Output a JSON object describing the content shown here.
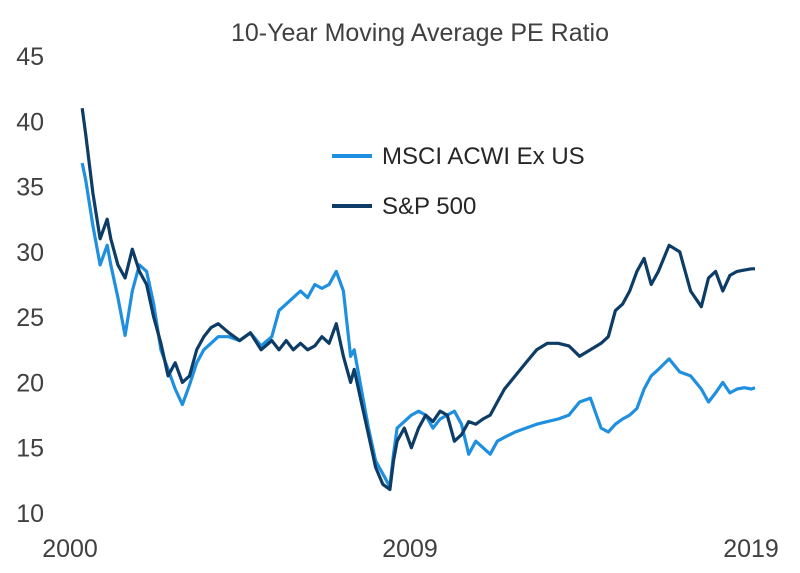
{
  "chart_data": {
    "type": "line",
    "title": "10-Year Moving Average PE Ratio",
    "xlabel": "",
    "ylabel": "",
    "x_ticks": [
      "2000",
      "2009",
      "2019"
    ],
    "y_ticks": [
      10,
      15,
      20,
      25,
      30,
      35,
      40,
      45
    ],
    "xlim": [
      2000,
      2019
    ],
    "ylim": [
      10,
      45
    ],
    "grid": false,
    "legend_position": "upper-center",
    "series": [
      {
        "name": "MSCI ACWI Ex US",
        "color": "#1f8fe0",
        "x": [
          2000.2,
          2000.3,
          2000.5,
          2000.7,
          2000.9,
          2001.0,
          2001.2,
          2001.4,
          2001.6,
          2001.8,
          2002.0,
          2002.2,
          2002.4,
          2002.6,
          2002.8,
          2003.0,
          2003.2,
          2003.4,
          2003.6,
          2003.8,
          2004.0,
          2004.3,
          2004.6,
          2004.9,
          2005.2,
          2005.5,
          2005.7,
          2005.9,
          2006.1,
          2006.3,
          2006.5,
          2006.7,
          2006.9,
          2007.1,
          2007.3,
          2007.5,
          2007.7,
          2007.8,
          2008.0,
          2008.2,
          2008.4,
          2008.6,
          2008.8,
          2008.9,
          2009.0,
          2009.2,
          2009.4,
          2009.6,
          2009.8,
          2010.0,
          2010.2,
          2010.4,
          2010.6,
          2010.8,
          2011.0,
          2011.2,
          2011.4,
          2011.6,
          2011.8,
          2012.0,
          2012.3,
          2012.6,
          2012.9,
          2013.2,
          2013.5,
          2013.8,
          2014.1,
          2014.4,
          2014.7,
          2014.9,
          2015.1,
          2015.3,
          2015.5,
          2015.7,
          2015.9,
          2016.1,
          2016.3,
          2016.6,
          2016.9,
          2017.2,
          2017.5,
          2017.7,
          2017.9,
          2018.1,
          2018.3,
          2018.5,
          2018.7,
          2018.9,
          2019.0
        ],
        "values": [
          36.8,
          35.5,
          32,
          29,
          30.5,
          29,
          26.5,
          23.6,
          27,
          29,
          28.5,
          26,
          22.5,
          21,
          19.5,
          18.3,
          19.8,
          21.5,
          22.5,
          23,
          23.5,
          23.5,
          23.2,
          23.8,
          22.8,
          23.5,
          25.5,
          26,
          26.5,
          27,
          26.5,
          27.5,
          27.2,
          27.5,
          28.5,
          27,
          22,
          22.5,
          19.5,
          16.5,
          14,
          13,
          12,
          14.5,
          16.5,
          17,
          17.5,
          17.8,
          17.5,
          16.5,
          17.2,
          17.5,
          17.8,
          16.8,
          14.5,
          15.5,
          15,
          14.5,
          15.5,
          15.8,
          16.2,
          16.5,
          16.8,
          17,
          17.2,
          17.5,
          18.5,
          18.8,
          16.5,
          16.2,
          16.8,
          17.2,
          17.5,
          18,
          19.5,
          20.5,
          21,
          21.8,
          20.8,
          20.5,
          19.5,
          18.5,
          19.2,
          20,
          19.2,
          19.5,
          19.6,
          19.5,
          19.6
        ]
      },
      {
        "name": "S&P 500",
        "color": "#0d3c66",
        "x": [
          2000.2,
          2000.3,
          2000.5,
          2000.7,
          2000.9,
          2001.0,
          2001.2,
          2001.4,
          2001.6,
          2001.8,
          2002.0,
          2002.2,
          2002.4,
          2002.6,
          2002.8,
          2003.0,
          2003.2,
          2003.4,
          2003.6,
          2003.8,
          2004.0,
          2004.3,
          2004.6,
          2004.9,
          2005.2,
          2005.5,
          2005.7,
          2005.9,
          2006.1,
          2006.3,
          2006.5,
          2006.7,
          2006.9,
          2007.1,
          2007.3,
          2007.5,
          2007.7,
          2007.8,
          2008.0,
          2008.2,
          2008.4,
          2008.6,
          2008.8,
          2008.9,
          2009.0,
          2009.2,
          2009.4,
          2009.6,
          2009.8,
          2010.0,
          2010.2,
          2010.4,
          2010.6,
          2010.8,
          2011.0,
          2011.2,
          2011.4,
          2011.6,
          2011.8,
          2012.0,
          2012.3,
          2012.6,
          2012.9,
          2013.2,
          2013.5,
          2013.8,
          2014.1,
          2014.4,
          2014.7,
          2014.9,
          2015.1,
          2015.3,
          2015.5,
          2015.7,
          2015.9,
          2016.1,
          2016.3,
          2016.6,
          2016.9,
          2017.2,
          2017.5,
          2017.7,
          2017.9,
          2018.1,
          2018.3,
          2018.5,
          2018.7,
          2018.9,
          2019.0
        ],
        "values": [
          41,
          39,
          34.5,
          31,
          32.5,
          31,
          29,
          28,
          30.2,
          28.5,
          27.5,
          25,
          23,
          20.5,
          21.5,
          20,
          20.5,
          22.5,
          23.5,
          24.2,
          24.5,
          23.8,
          23.2,
          23.8,
          22.5,
          23.2,
          22.5,
          23.2,
          22.5,
          23,
          22.5,
          22.8,
          23.5,
          23,
          24.5,
          22,
          20,
          21,
          18.5,
          16,
          13.5,
          12.2,
          11.8,
          14,
          15.5,
          16.5,
          15,
          16.5,
          17.5,
          17,
          17.8,
          17.5,
          15.5,
          16,
          17,
          16.8,
          17.2,
          17.5,
          18.5,
          19.5,
          20.5,
          21.5,
          22.5,
          23,
          23,
          22.8,
          22,
          22.5,
          23,
          23.5,
          25.5,
          26,
          27,
          28.5,
          29.5,
          27.5,
          28.5,
          30.5,
          30,
          27,
          25.8,
          28,
          28.5,
          27,
          28.2,
          28.5,
          28.6,
          28.7,
          28.7
        ]
      }
    ]
  }
}
